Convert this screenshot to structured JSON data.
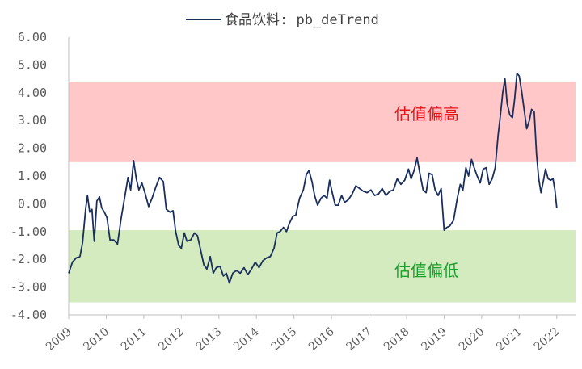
{
  "chart_data": {
    "type": "line",
    "title": "",
    "xlabel": "",
    "ylabel": "",
    "legend": {
      "placement": "top-center"
    },
    "grid": false,
    "ylim": [
      -4.0,
      6.0
    ],
    "yticks": [
      6.0,
      5.0,
      4.0,
      3.0,
      2.0,
      1.0,
      0.0,
      -1.0,
      -2.0,
      -3.0,
      -4.0
    ],
    "ytick_labels": [
      "6.00",
      "5.00",
      "4.00",
      "3.00",
      "2.00",
      "1.00",
      "0.00",
      "-1.00",
      "-2.00",
      "-3.00",
      "-4.00"
    ],
    "xlim": [
      2009.0,
      2022.5
    ],
    "xticks": [
      2009,
      2010,
      2011,
      2012,
      2013,
      2014,
      2015,
      2016,
      2017,
      2018,
      2019,
      2020,
      2021,
      2022
    ],
    "xtick_labels": [
      "2009",
      "2010",
      "2011",
      "2012",
      "2013",
      "2014",
      "2015",
      "2016",
      "2017",
      "2018",
      "2019",
      "2020",
      "2021",
      "2022"
    ],
    "bands": [
      {
        "label": "估值偏高",
        "from": 1.5,
        "to": 4.4,
        "color": "#ffc7c7",
        "label_color": "#e8141b"
      },
      {
        "label": "估值偏低",
        "from": -3.55,
        "to": -0.95,
        "color": "#d3ebbf",
        "label_color": "#1e9e2f"
      }
    ],
    "series": [
      {
        "name": "食品饮料: pb_deTrend",
        "color": "#1b2f5e",
        "points": [
          [
            2009.0,
            -2.5
          ],
          [
            2009.1,
            -2.1
          ],
          [
            2009.2,
            -1.95
          ],
          [
            2009.3,
            -1.9
          ],
          [
            2009.37,
            -1.4
          ],
          [
            2009.45,
            -0.2
          ],
          [
            2009.5,
            0.3
          ],
          [
            2009.56,
            -0.3
          ],
          [
            2009.62,
            -0.2
          ],
          [
            2009.68,
            -1.35
          ],
          [
            2009.75,
            0.1
          ],
          [
            2009.82,
            0.25
          ],
          [
            2009.88,
            -0.15
          ],
          [
            2009.95,
            -0.3
          ],
          [
            2010.02,
            -0.5
          ],
          [
            2010.1,
            -1.3
          ],
          [
            2010.2,
            -1.3
          ],
          [
            2010.3,
            -1.45
          ],
          [
            2010.4,
            -0.5
          ],
          [
            2010.5,
            0.3
          ],
          [
            2010.58,
            0.95
          ],
          [
            2010.65,
            0.5
          ],
          [
            2010.73,
            1.55
          ],
          [
            2010.8,
            0.9
          ],
          [
            2010.87,
            0.5
          ],
          [
            2010.95,
            0.75
          ],
          [
            2011.03,
            0.4
          ],
          [
            2011.13,
            -0.1
          ],
          [
            2011.22,
            0.2
          ],
          [
            2011.32,
            0.6
          ],
          [
            2011.42,
            0.95
          ],
          [
            2011.52,
            0.8
          ],
          [
            2011.6,
            -0.2
          ],
          [
            2011.7,
            -0.3
          ],
          [
            2011.78,
            -0.25
          ],
          [
            2011.85,
            -1.0
          ],
          [
            2011.93,
            -1.5
          ],
          [
            2012.0,
            -1.6
          ],
          [
            2012.08,
            -1.05
          ],
          [
            2012.15,
            -1.35
          ],
          [
            2012.25,
            -1.3
          ],
          [
            2012.35,
            -1.05
          ],
          [
            2012.43,
            -1.15
          ],
          [
            2012.52,
            -1.7
          ],
          [
            2012.6,
            -2.2
          ],
          [
            2012.68,
            -2.35
          ],
          [
            2012.77,
            -1.9
          ],
          [
            2012.85,
            -2.5
          ],
          [
            2012.93,
            -2.3
          ],
          [
            2013.03,
            -2.25
          ],
          [
            2013.12,
            -2.6
          ],
          [
            2013.2,
            -2.5
          ],
          [
            2013.28,
            -2.85
          ],
          [
            2013.37,
            -2.5
          ],
          [
            2013.47,
            -2.4
          ],
          [
            2013.57,
            -2.5
          ],
          [
            2013.67,
            -2.3
          ],
          [
            2013.77,
            -2.55
          ],
          [
            2013.87,
            -2.35
          ],
          [
            2013.97,
            -2.1
          ],
          [
            2014.07,
            -2.3
          ],
          [
            2014.17,
            -2.05
          ],
          [
            2014.27,
            -1.95
          ],
          [
            2014.37,
            -1.9
          ],
          [
            2014.47,
            -1.6
          ],
          [
            2014.55,
            -1.05
          ],
          [
            2014.63,
            -1.0
          ],
          [
            2014.72,
            -0.85
          ],
          [
            2014.8,
            -1.0
          ],
          [
            2014.88,
            -0.7
          ],
          [
            2014.97,
            -0.45
          ],
          [
            2015.05,
            -0.4
          ],
          [
            2015.15,
            0.2
          ],
          [
            2015.25,
            0.5
          ],
          [
            2015.33,
            1.05
          ],
          [
            2015.4,
            1.2
          ],
          [
            2015.48,
            0.8
          ],
          [
            2015.55,
            0.3
          ],
          [
            2015.63,
            -0.05
          ],
          [
            2015.72,
            0.2
          ],
          [
            2015.8,
            0.3
          ],
          [
            2015.88,
            0.2
          ],
          [
            2015.95,
            0.85
          ],
          [
            2016.02,
            0.4
          ],
          [
            2016.1,
            -0.05
          ],
          [
            2016.18,
            -0.05
          ],
          [
            2016.27,
            0.3
          ],
          [
            2016.35,
            0.05
          ],
          [
            2016.45,
            0.15
          ],
          [
            2016.55,
            0.35
          ],
          [
            2016.65,
            0.65
          ],
          [
            2016.75,
            0.55
          ],
          [
            2016.85,
            0.45
          ],
          [
            2016.95,
            0.4
          ],
          [
            2017.05,
            0.5
          ],
          [
            2017.15,
            0.3
          ],
          [
            2017.25,
            0.35
          ],
          [
            2017.35,
            0.55
          ],
          [
            2017.45,
            0.3
          ],
          [
            2017.55,
            0.45
          ],
          [
            2017.65,
            0.5
          ],
          [
            2017.75,
            0.9
          ],
          [
            2017.85,
            0.7
          ],
          [
            2017.95,
            0.85
          ],
          [
            2018.05,
            1.25
          ],
          [
            2018.12,
            0.9
          ],
          [
            2018.2,
            1.2
          ],
          [
            2018.28,
            1.65
          ],
          [
            2018.36,
            1.05
          ],
          [
            2018.44,
            0.5
          ],
          [
            2018.52,
            0.4
          ],
          [
            2018.6,
            1.1
          ],
          [
            2018.68,
            1.05
          ],
          [
            2018.76,
            0.5
          ],
          [
            2018.84,
            0.3
          ],
          [
            2018.92,
            0.55
          ],
          [
            2019.0,
            -0.95
          ],
          [
            2019.07,
            -0.85
          ],
          [
            2019.15,
            -0.8
          ],
          [
            2019.25,
            -0.6
          ],
          [
            2019.35,
            0.2
          ],
          [
            2019.43,
            0.7
          ],
          [
            2019.5,
            0.5
          ],
          [
            2019.58,
            1.3
          ],
          [
            2019.65,
            1.0
          ],
          [
            2019.73,
            1.6
          ],
          [
            2019.8,
            1.3
          ],
          [
            2019.88,
            1.0
          ],
          [
            2019.96,
            0.75
          ],
          [
            2020.04,
            1.25
          ],
          [
            2020.12,
            1.3
          ],
          [
            2020.2,
            0.7
          ],
          [
            2020.28,
            0.9
          ],
          [
            2020.36,
            1.3
          ],
          [
            2020.44,
            2.5
          ],
          [
            2020.5,
            3.2
          ],
          [
            2020.56,
            4.0
          ],
          [
            2020.62,
            4.5
          ],
          [
            2020.68,
            3.6
          ],
          [
            2020.75,
            3.2
          ],
          [
            2020.82,
            3.1
          ],
          [
            2020.88,
            3.8
          ],
          [
            2020.94,
            4.7
          ],
          [
            2021.0,
            4.6
          ],
          [
            2021.07,
            4.0
          ],
          [
            2021.14,
            3.3
          ],
          [
            2021.2,
            2.7
          ],
          [
            2021.27,
            3.0
          ],
          [
            2021.33,
            3.4
          ],
          [
            2021.4,
            3.3
          ],
          [
            2021.46,
            1.8
          ],
          [
            2021.52,
            0.9
          ],
          [
            2021.58,
            0.4
          ],
          [
            2021.64,
            0.8
          ],
          [
            2021.7,
            1.25
          ],
          [
            2021.77,
            0.9
          ],
          [
            2021.84,
            0.85
          ],
          [
            2021.9,
            0.9
          ],
          [
            2021.95,
            0.5
          ],
          [
            2022.0,
            -0.15
          ]
        ]
      }
    ]
  }
}
